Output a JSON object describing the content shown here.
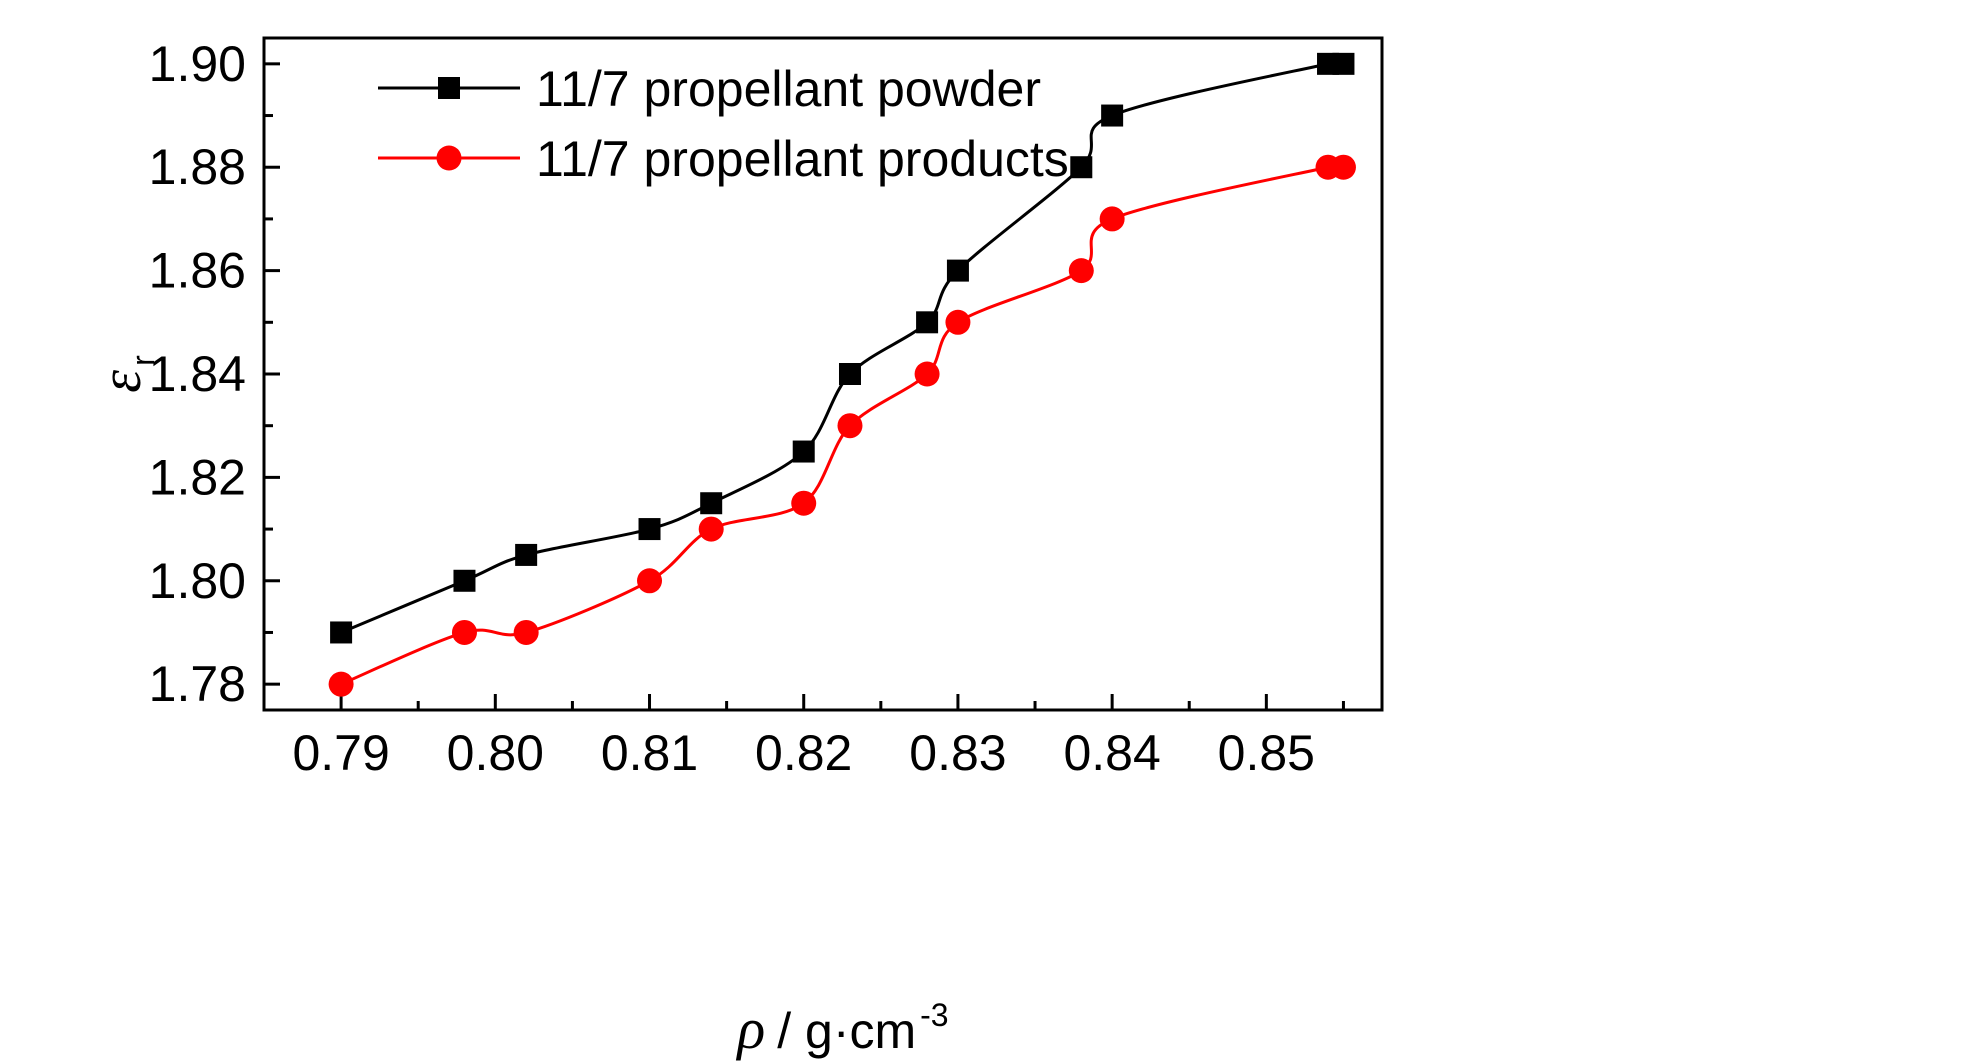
{
  "chart_data": {
    "type": "line",
    "title": "",
    "xlabel": {
      "symbol": "ρ",
      "unit": "/ g·cm",
      "unit_exponent": "-3"
    },
    "ylabel": {
      "symbol": "ε",
      "subscript": "r"
    },
    "xlim": [
      0.785,
      0.8575
    ],
    "ylim": [
      1.775,
      1.905
    ],
    "x_ticks": [
      0.79,
      0.8,
      0.81,
      0.82,
      0.83,
      0.84,
      0.85
    ],
    "x_tick_labels": [
      "0.79",
      "0.80",
      "0.81",
      "0.82",
      "0.83",
      "0.84",
      "0.85"
    ],
    "y_ticks": [
      1.78,
      1.8,
      1.82,
      1.84,
      1.86,
      1.88,
      1.9
    ],
    "y_tick_labels": [
      "1.78",
      "1.80",
      "1.82",
      "1.84",
      "1.86",
      "1.88",
      "1.90"
    ],
    "grid": false,
    "legend_position": "top-left",
    "series": [
      {
        "name": "11/7 propellant powder",
        "color": "#000000",
        "marker": "square",
        "x": [
          0.79,
          0.798,
          0.802,
          0.81,
          0.814,
          0.82,
          0.823,
          0.828,
          0.83,
          0.838,
          0.84,
          0.854,
          0.855
        ],
        "y": [
          1.79,
          1.8,
          1.805,
          1.81,
          1.815,
          1.825,
          1.84,
          1.85,
          1.86,
          1.88,
          1.89,
          1.9,
          1.9
        ]
      },
      {
        "name": "11/7 propellant products",
        "color": "#ff0000",
        "marker": "circle",
        "x": [
          0.79,
          0.798,
          0.802,
          0.81,
          0.814,
          0.82,
          0.823,
          0.828,
          0.83,
          0.838,
          0.84,
          0.854,
          0.855
        ],
        "y": [
          1.78,
          1.79,
          1.79,
          1.8,
          1.81,
          1.815,
          1.83,
          1.84,
          1.85,
          1.86,
          1.87,
          1.88,
          1.88
        ]
      }
    ]
  }
}
